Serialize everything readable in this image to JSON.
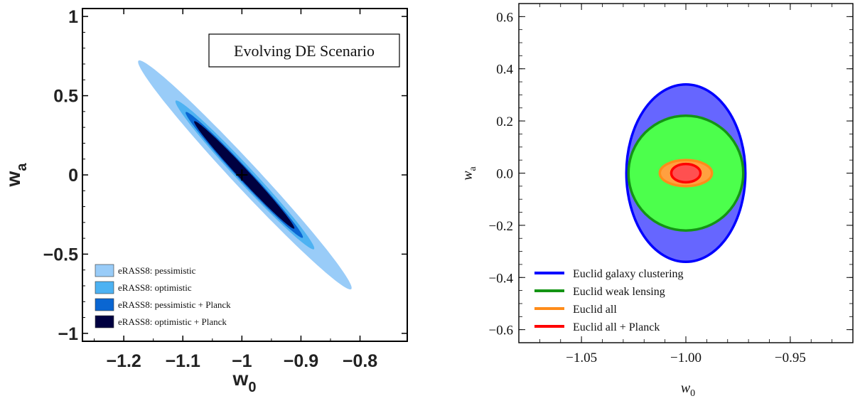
{
  "chart_data": [
    {
      "type": "ellipse-contours",
      "title": "Evolving DE Scenario",
      "xlabel": "w0",
      "ylabel": "wa",
      "xlim": [
        -1.27,
        -0.72
      ],
      "ylim": [
        -1.05,
        1.05
      ],
      "xticks": [
        -1.2,
        -1.1,
        -1.0,
        -0.9,
        -0.8
      ],
      "xtick_labels": [
        "−1.2",
        "−1.1",
        "−1",
        "−0.9",
        "−0.8"
      ],
      "yticks": [
        -1,
        -0.5,
        0,
        0.5,
        1
      ],
      "ytick_labels": [
        "−1",
        "−0.5",
        "0",
        "0.5",
        "1"
      ],
      "legend_position": "bottom-left",
      "center": {
        "x": -1.0,
        "y": 0.0,
        "marker": "+"
      },
      "series": [
        {
          "name": "eRASS8: pessimistic",
          "color": "#99ccf8",
          "cx": -0.995,
          "cy": 0.0,
          "semi_major": 1.0,
          "semi_minor": 0.05,
          "angle_deg": -76.0
        },
        {
          "name": "eRASS8: optimistic",
          "color": "#4db2f2",
          "cx": -0.995,
          "cy": 0.0,
          "semi_major": 0.65,
          "semi_minor": 0.033,
          "angle_deg": -76.0
        },
        {
          "name": "eRASS8: pessimistic + Planck",
          "color": "#0a66d2",
          "cx": -0.996,
          "cy": 0.0,
          "semi_major": 0.55,
          "semi_minor": 0.025,
          "angle_deg": -76.0
        },
        {
          "name": "eRASS8: optimistic + Planck",
          "color": "#000040",
          "cx": -0.996,
          "cy": 0.0,
          "semi_major": 0.47,
          "semi_minor": 0.021,
          "angle_deg": -76.0
        }
      ]
    },
    {
      "type": "ellipse-contours",
      "title": "",
      "xlabel": "w0",
      "ylabel": "wa",
      "xlim": [
        -1.08,
        -0.92
      ],
      "ylim": [
        -0.65,
        0.65
      ],
      "xticks": [
        -1.05,
        -1.0,
        -0.95
      ],
      "xtick_labels": [
        "−1.05",
        "−1.00",
        "−0.95"
      ],
      "yticks": [
        -0.6,
        -0.4,
        -0.2,
        0.0,
        0.2,
        0.4,
        0.6
      ],
      "ytick_labels": [
        "−0.6",
        "−0.4",
        "−0.2",
        "0.0",
        "0.2",
        "0.4",
        "0.6"
      ],
      "legend_position": "bottom-left",
      "series": [
        {
          "name": "Euclid galaxy clustering",
          "line_color": "#0000ff",
          "fill_color": "#6666ff",
          "cx": -1.0,
          "cy": 0.0,
          "rx": 0.0285,
          "ry": 0.34
        },
        {
          "name": "Euclid weak lensing",
          "line_color": "#149414",
          "fill_color": "#4cff4c",
          "cx": -1.0,
          "cy": 0.0,
          "rx": 0.0275,
          "ry": 0.22
        },
        {
          "name": "Euclid all",
          "line_color": "#ff8c1a",
          "fill_color": "#ffa040",
          "cx": -1.0,
          "cy": 0.0,
          "rx": 0.0125,
          "ry": 0.05
        },
        {
          "name": "Euclid all + Planck",
          "line_color": "#ff0000",
          "fill_color": "#ff5050",
          "cx": -1.0,
          "cy": 0.0,
          "rx": 0.007,
          "ry": 0.035
        }
      ]
    }
  ]
}
